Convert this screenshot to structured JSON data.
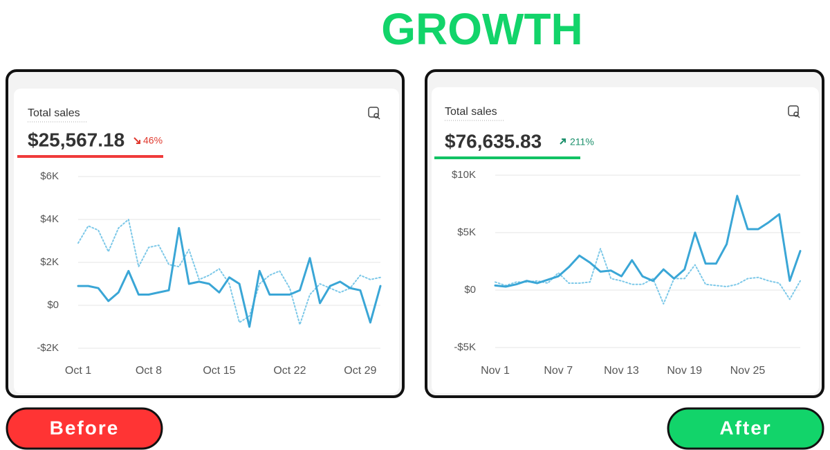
{
  "title": "GROWTH",
  "buttons": [
    "Before",
    "After"
  ],
  "chart_data": [
    {
      "type": "line",
      "title": "Total sales",
      "total": "$25,567.18",
      "change": "46%",
      "change_color": "#e03a2f",
      "accent": "#f03a3a",
      "categories": [
        "Oct 1",
        null,
        null,
        null,
        null,
        null,
        null,
        "Oct 8",
        null,
        null,
        null,
        null,
        null,
        null,
        "Oct 15",
        null,
        null,
        null,
        null,
        null,
        null,
        "Oct 22",
        null,
        null,
        null,
        null,
        null,
        null,
        "Oct 29",
        null,
        null
      ],
      "series": [
        {
          "color": "#3aa6d6",
          "style": "solid",
          "values": [
            900,
            900,
            800,
            200,
            600,
            1600,
            500,
            500,
            600,
            700,
            3600,
            1000,
            1100,
            1000,
            600,
            1300,
            1000,
            -1000,
            1600,
            500,
            500,
            500,
            700,
            2200,
            100,
            900,
            1100,
            800,
            700,
            -800,
            900
          ]
        },
        {
          "color": "#7cc8e8",
          "style": "dotted",
          "values": [
            2900,
            3700,
            3500,
            2500,
            3600,
            4000,
            1800,
            2700,
            2800,
            1900,
            1800,
            2600,
            1200,
            1400,
            1700,
            1000,
            -800,
            -500,
            1000,
            1400,
            1600,
            800,
            -900,
            500,
            1000,
            800,
            600,
            800,
            1400,
            1200,
            1300
          ]
        }
      ],
      "ylim": [
        -2000,
        6000
      ],
      "yticks": [
        {
          "value": -2000,
          "label": "-$2K"
        },
        {
          "value": 0,
          "label": "$0"
        },
        {
          "value": 2000,
          "label": "$2K"
        },
        {
          "value": 4000,
          "label": "$4K"
        },
        {
          "value": 6000,
          "label": "$6K"
        }
      ],
      "grid": true
    },
    {
      "type": "line",
      "title": "Total sales",
      "total": "$76,635.83",
      "change": "211%",
      "change_color": "#1a8f6a",
      "accent": "#12c264",
      "categories": [
        "Nov 1",
        null,
        null,
        null,
        null,
        null,
        "Nov 7",
        null,
        null,
        null,
        null,
        null,
        "Nov 13",
        null,
        null,
        null,
        null,
        null,
        "Nov 19",
        null,
        null,
        null,
        null,
        null,
        "Nov 25",
        null,
        null,
        null,
        null,
        null
      ],
      "series": [
        {
          "color": "#3aa6d6",
          "style": "solid",
          "values": [
            400,
            300,
            500,
            800,
            600,
            900,
            1200,
            2000,
            3000,
            2400,
            1600,
            1700,
            1200,
            2600,
            1200,
            800,
            1800,
            1000,
            1800,
            5000,
            2300,
            2300,
            4000,
            8200,
            5300,
            5300,
            5900,
            6600,
            800,
            3400
          ]
        },
        {
          "color": "#7cc8e8",
          "style": "dotted",
          "values": [
            700,
            400,
            700,
            700,
            800,
            600,
            1500,
            600,
            600,
            700,
            3600,
            1000,
            800,
            500,
            500,
            1000,
            -1200,
            1000,
            1000,
            2200,
            500,
            400,
            300,
            500,
            1000,
            1100,
            800,
            600,
            -800,
            800
          ]
        }
      ],
      "ylim": [
        -5000,
        10000
      ],
      "yticks": [
        {
          "value": -5000,
          "label": "-$5K"
        },
        {
          "value": 0,
          "label": "$0"
        },
        {
          "value": 5000,
          "label": "$5K"
        },
        {
          "value": 10000,
          "label": "$10K"
        }
      ],
      "grid": true
    }
  ]
}
